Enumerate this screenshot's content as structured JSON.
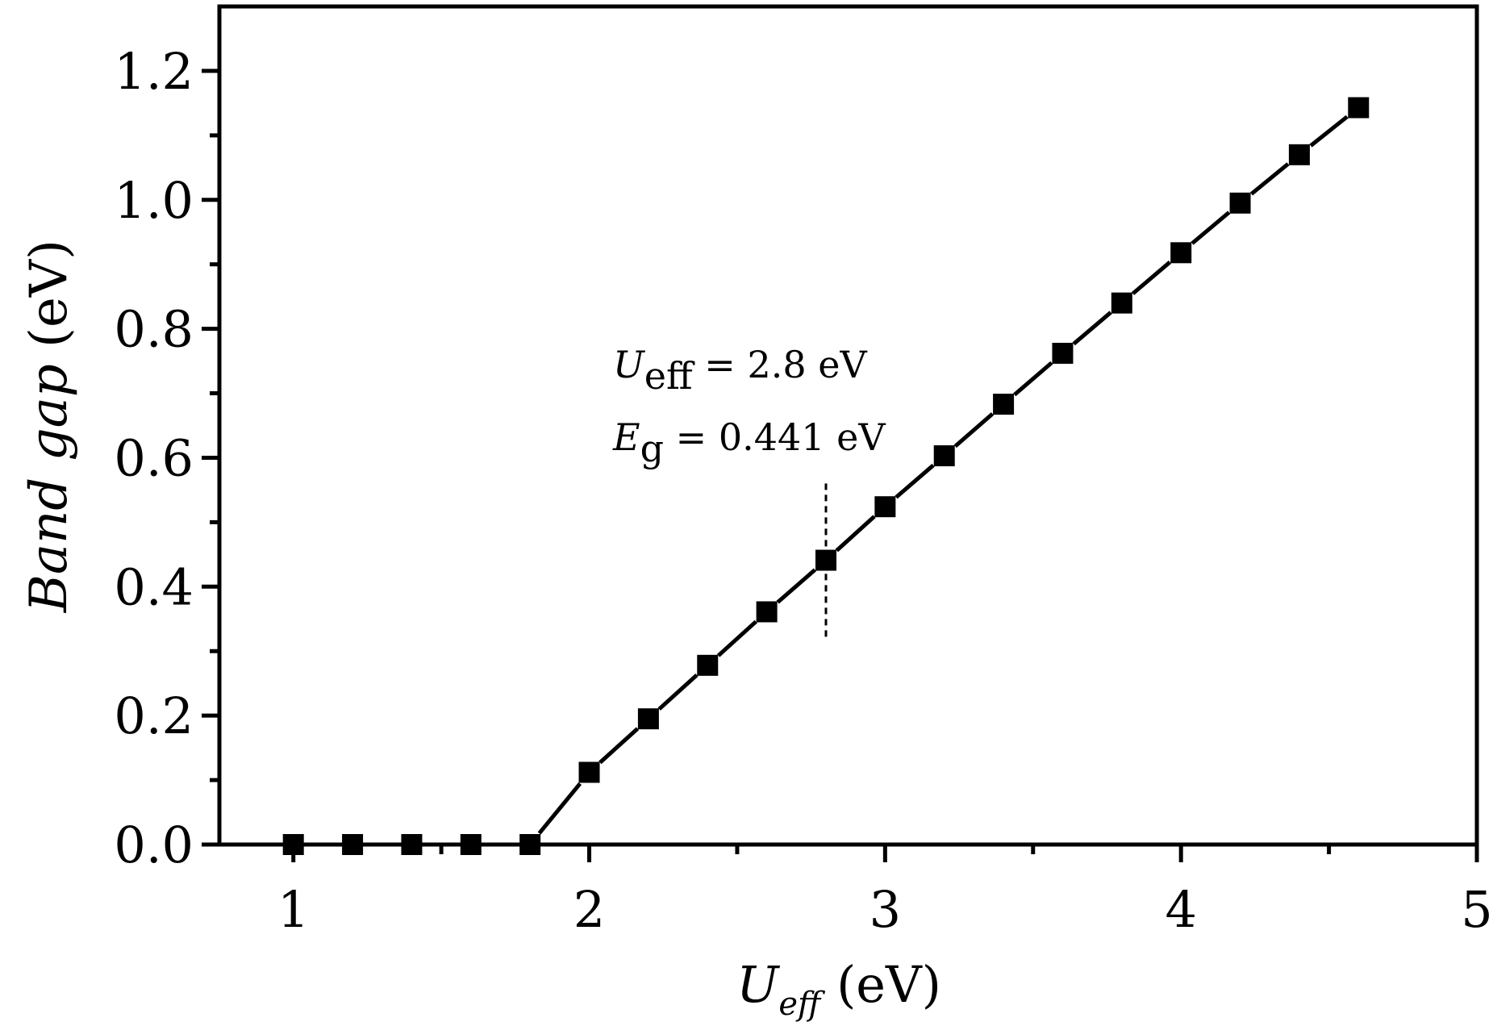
{
  "chart_data": {
    "type": "line",
    "xlabel": {
      "main": "U",
      "sub": "eff",
      "unit": " (eV)"
    },
    "ylabel": {
      "main": "Band gap",
      "unit": " (eV)"
    },
    "xlim": [
      0.75,
      5
    ],
    "ylim": [
      0,
      1.3
    ],
    "x_ticks": [
      1,
      2,
      3,
      4,
      5
    ],
    "x_tick_labels": [
      "1",
      "2",
      "3",
      "4",
      "5"
    ],
    "x_minor_ticks": [
      1.5,
      2.5,
      3.5,
      4.5
    ],
    "y_ticks": [
      0.0,
      0.2,
      0.4,
      0.6,
      0.8,
      1.0,
      1.2
    ],
    "y_tick_labels": [
      "0.0",
      "0.2",
      "0.4",
      "0.6",
      "0.8",
      "1.0",
      "1.2"
    ],
    "y_minor_ticks": [
      0.1,
      0.3,
      0.5,
      0.7,
      0.9,
      1.1
    ],
    "grid": false,
    "legend": "none",
    "series": [
      {
        "x": [
          1.0,
          1.2,
          1.4,
          1.6,
          1.8,
          2.0,
          2.2,
          2.4,
          2.6,
          2.8,
          3.0,
          3.2,
          3.4,
          3.6,
          3.8,
          4.0,
          4.2,
          4.4,
          4.6
        ],
        "values": [
          0.0,
          0.0,
          0.0,
          0.0,
          0.0,
          0.112,
          0.195,
          0.278,
          0.361,
          0.441,
          0.524,
          0.603,
          0.683,
          0.762,
          0.84,
          0.918,
          0.995,
          1.07,
          1.143
        ],
        "marker": "square",
        "color": "#000000"
      }
    ],
    "reference_line": {
      "x": 2.8,
      "y_range": [
        0.32,
        0.56
      ],
      "style": "dashed"
    },
    "annotations": [
      {
        "main": "U",
        "sub": "eff",
        "rest": " = 2.8 eV"
      },
      {
        "main": "E",
        "sub": "g",
        "rest": " = 0.441 eV"
      }
    ]
  }
}
